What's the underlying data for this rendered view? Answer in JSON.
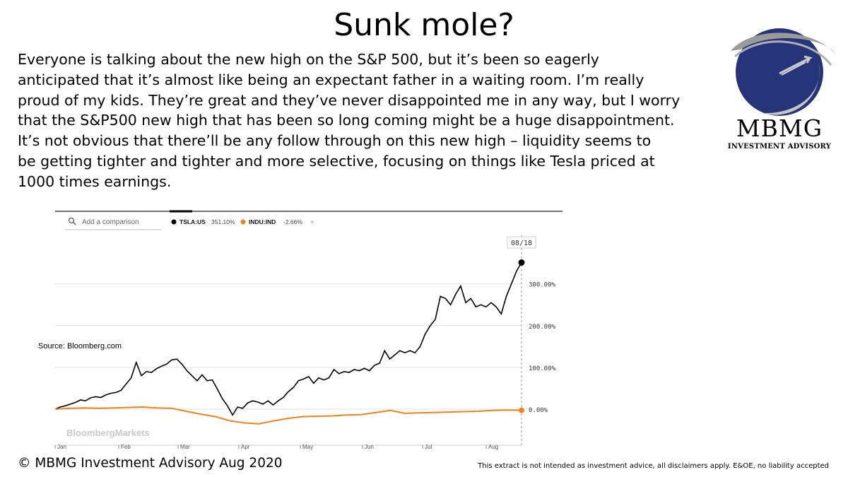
{
  "title": "Sunk mole?",
  "paragraph_lines": [
    "Everyone is talking about the new high on the S&P 500, but it’s been so eagerly",
    "anticipated that it’s almost like being an expectant father in a waiting room. I’m really",
    "proud of my kids. They’re great and they’ve never disappointed me in any way, but I worry",
    "that the S&P500 new high that has been so long coming might be a huge disappointment.",
    "It’s not obvious that there’ll be any follow through on this new high – liquidity seems to",
    "be getting tighter and tighter and more selective, focusing on things like Tesla priced at",
    "1000 times earnings."
  ],
  "logo": {
    "name": "MBMG",
    "tagline": "INVESTMENT ADVISORY",
    "globe_color": "#26357a"
  },
  "search": {
    "placeholder": "Add a comparison",
    "icon": "search-icon"
  },
  "source": "Source: Bloomberg.com",
  "watermark": "BloombergMarkets",
  "copyright": "© MBMG Investment Advisory Aug 2020",
  "disclaimer": "This extract is not intended as investment advice, all disclaimers apply. E&OE, no liability accepted",
  "chart_data": {
    "type": "line",
    "date_label": "08/18",
    "x_tick_labels": [
      "Jan",
      "Feb",
      "Mar",
      "Apr",
      "May",
      "Jun",
      "Jul",
      "Aug"
    ],
    "y_tick_labels": [
      "0.00%",
      "100.00%",
      "200.00%",
      "300.00%"
    ],
    "y_ticks": [
      0,
      100,
      200,
      300
    ],
    "ylim": [
      -95,
      410
    ],
    "grid": true,
    "legend_position": "top-left",
    "series": [
      {
        "name": "TSLA:US",
        "legend_value": "351.10%",
        "color": "#000000",
        "points": [
          [
            "Jan",
            0
          ],
          [
            "Jan",
            5
          ],
          [
            "Jan",
            8
          ],
          [
            "Jan",
            12
          ],
          [
            "Jan",
            16
          ],
          [
            "Jan",
            22
          ],
          [
            "Jan",
            20
          ],
          [
            "Jan",
            27
          ],
          [
            "Jan",
            30
          ],
          [
            "Jan",
            28
          ],
          [
            "Jan",
            34
          ],
          [
            "Jan",
            38
          ],
          [
            "Feb",
            40
          ],
          [
            "Feb",
            45
          ],
          [
            "Feb",
            60
          ],
          [
            "Feb",
            75
          ],
          [
            "Feb",
            112
          ],
          [
            "Feb",
            80
          ],
          [
            "Feb",
            90
          ],
          [
            "Feb",
            88
          ],
          [
            "Feb",
            97
          ],
          [
            "Feb",
            103
          ],
          [
            "Feb",
            108
          ],
          [
            "Feb",
            118
          ],
          [
            "Feb",
            120
          ],
          [
            "Feb",
            108
          ],
          [
            "Mar",
            92
          ],
          [
            "Mar",
            80
          ],
          [
            "Mar",
            68
          ],
          [
            "Mar",
            82
          ],
          [
            "Mar",
            68
          ],
          [
            "Mar",
            70
          ],
          [
            "Mar",
            48
          ],
          [
            "Mar",
            25
          ],
          [
            "Mar",
            8
          ],
          [
            "Mar",
            -14
          ],
          [
            "Mar",
            5
          ],
          [
            "Mar",
            2
          ],
          [
            "Mar",
            15
          ],
          [
            "Mar",
            20
          ],
          [
            "Mar",
            17
          ],
          [
            "Mar",
            12
          ],
          [
            "Mar",
            20
          ],
          [
            "Apr",
            10
          ],
          [
            "Apr",
            20
          ],
          [
            "Apr",
            28
          ],
          [
            "Apr",
            42
          ],
          [
            "Apr",
            52
          ],
          [
            "Apr",
            68
          ],
          [
            "Apr",
            72
          ],
          [
            "Apr",
            78
          ],
          [
            "Apr",
            62
          ],
          [
            "Apr",
            75
          ],
          [
            "Apr",
            70
          ],
          [
            "May",
            75
          ],
          [
            "May",
            95
          ],
          [
            "May",
            85
          ],
          [
            "May",
            90
          ],
          [
            "May",
            88
          ],
          [
            "May",
            95
          ],
          [
            "May",
            92
          ],
          [
            "May",
            98
          ],
          [
            "May",
            92
          ],
          [
            "Jun",
            105
          ],
          [
            "Jun",
            110
          ],
          [
            "Jun",
            140
          ],
          [
            "Jun",
            120
          ],
          [
            "Jun",
            130
          ],
          [
            "Jun",
            140
          ],
          [
            "Jun",
            135
          ],
          [
            "Jun",
            140
          ],
          [
            "Jun",
            135
          ],
          [
            "Jul",
            150
          ],
          [
            "Jul",
            180
          ],
          [
            "Jul",
            200
          ],
          [
            "Jul",
            215
          ],
          [
            "Jul",
            270
          ],
          [
            "Jul",
            265
          ],
          [
            "Jul",
            250
          ],
          [
            "Jul",
            275
          ],
          [
            "Jul",
            295
          ],
          [
            "Jul",
            255
          ],
          [
            "Jul",
            265
          ],
          [
            "Jul",
            245
          ],
          [
            "Aug",
            250
          ],
          [
            "Aug",
            245
          ],
          [
            "Aug",
            255
          ],
          [
            "Aug",
            245
          ],
          [
            "Aug",
            228
          ],
          [
            "Aug",
            270
          ],
          [
            "Aug",
            300
          ],
          [
            "Aug",
            330
          ],
          [
            "Aug",
            351.1
          ]
        ]
      },
      {
        "name": "INDU:IND",
        "legend_value": "-2.66%",
        "color": "#f0831d",
        "points": [
          [
            "Jan",
            0
          ],
          [
            "Jan",
            2
          ],
          [
            "Jan",
            3
          ],
          [
            "Feb",
            2
          ],
          [
            "Feb",
            3
          ],
          [
            "Feb",
            4
          ],
          [
            "Feb",
            5
          ],
          [
            "Feb",
            3
          ],
          [
            "Mar",
            2
          ],
          [
            "Mar",
            -5
          ],
          [
            "Mar",
            -12
          ],
          [
            "Mar",
            -18
          ],
          [
            "Mar",
            -28
          ],
          [
            "Mar",
            -33
          ],
          [
            "Mar",
            -35
          ],
          [
            "Apr",
            -28
          ],
          [
            "Apr",
            -22
          ],
          [
            "Apr",
            -18
          ],
          [
            "Apr",
            -17
          ],
          [
            "May",
            -16
          ],
          [
            "May",
            -14
          ],
          [
            "May",
            -13
          ],
          [
            "Jun",
            -8
          ],
          [
            "Jun",
            -3
          ],
          [
            "Jun",
            -10
          ],
          [
            "Jun",
            -9
          ],
          [
            "Jul",
            -8
          ],
          [
            "Jul",
            -7
          ],
          [
            "Jul",
            -6
          ],
          [
            "Jul",
            -5
          ],
          [
            "Aug",
            -3
          ],
          [
            "Aug",
            -2
          ],
          [
            "Aug",
            -2.66
          ]
        ]
      }
    ]
  }
}
